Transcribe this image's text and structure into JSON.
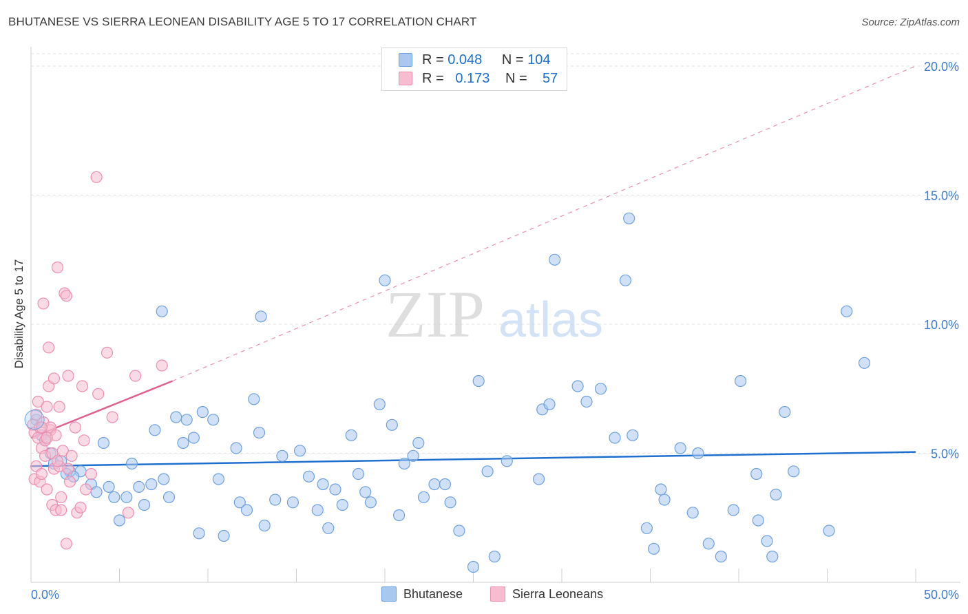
{
  "title": "BHUTANESE VS SIERRA LEONEAN DISABILITY AGE 5 TO 17 CORRELATION CHART",
  "source": "Source: ZipAtlas.com",
  "watermark": {
    "zip": "ZIP",
    "atlas": "atlas"
  },
  "legend": {
    "rows": [
      {
        "r_label": "R =",
        "r_value": "0.048",
        "n_label": "N =",
        "n_value": "104"
      },
      {
        "r_label": "R =",
        "r_value": "0.173",
        "n_label": "N =",
        "n_value": "57"
      }
    ]
  },
  "bottom_legend": [
    "Bhutanese",
    "Sierra Leoneans"
  ],
  "colors": {
    "blue_fill": "#a9c8f0",
    "blue_stroke": "#6ea0dd",
    "blue_line": "#1f6fcf",
    "pink_fill": "#f6bcd0",
    "pink_stroke": "#ec8fb0",
    "pink_line": "#e0608e",
    "axis_text": "#3c7bd0",
    "grid": "#e3e3e3"
  },
  "chart_data": {
    "type": "scatter",
    "title": "BHUTANESE VS SIERRA LEONEAN DISABILITY AGE 5 TO 17 CORRELATION CHART",
    "xlabel": "",
    "ylabel": "Disability Age 5 to 17",
    "xlim": [
      0,
      50
    ],
    "ylim": [
      0,
      20.5
    ],
    "x_tick_labels": [
      "0.0%",
      "50.0%"
    ],
    "y_tick_labels": [
      "5.0%",
      "10.0%",
      "15.0%",
      "20.0%"
    ],
    "y_ticks": [
      5,
      10,
      15,
      20
    ],
    "x_minor_ticks": [
      0,
      5,
      10,
      15,
      20,
      25,
      30,
      35,
      40,
      45,
      50
    ],
    "grid": true,
    "legend_position": "top-center",
    "series": [
      {
        "name": "Bhutanese",
        "R": 0.048,
        "N": 104,
        "trend": {
          "x": [
            0,
            50
          ],
          "y": [
            4.5,
            5.05
          ],
          "style": "solid"
        },
        "points": [
          [
            0.3,
            6.3
          ],
          [
            0.6,
            5.7
          ],
          [
            0.8,
            5.5
          ],
          [
            1.1,
            5.0
          ],
          [
            1.3,
            4.6
          ],
          [
            1.7,
            4.7
          ],
          [
            2.2,
            4.3
          ],
          [
            2.8,
            4.3
          ],
          [
            2.0,
            4.2
          ],
          [
            2.4,
            4.1
          ],
          [
            3.4,
            3.8
          ],
          [
            3.7,
            3.5
          ],
          [
            4.1,
            5.4
          ],
          [
            4.4,
            3.7
          ],
          [
            4.7,
            3.3
          ],
          [
            5.0,
            2.4
          ],
          [
            5.4,
            3.3
          ],
          [
            5.7,
            4.6
          ],
          [
            6.1,
            3.7
          ],
          [
            6.4,
            3.0
          ],
          [
            6.8,
            3.8
          ],
          [
            7.0,
            5.9
          ],
          [
            7.5,
            4.0
          ],
          [
            7.8,
            3.3
          ],
          [
            7.4,
            10.5
          ],
          [
            8.2,
            6.4
          ],
          [
            8.6,
            5.4
          ],
          [
            8.8,
            6.3
          ],
          [
            9.2,
            5.6
          ],
          [
            9.5,
            1.9
          ],
          [
            9.7,
            6.6
          ],
          [
            10.3,
            6.3
          ],
          [
            10.6,
            4.0
          ],
          [
            10.9,
            1.8
          ],
          [
            11.6,
            5.2
          ],
          [
            11.8,
            3.1
          ],
          [
            12.2,
            2.8
          ],
          [
            12.6,
            7.1
          ],
          [
            12.9,
            5.8
          ],
          [
            13.2,
            2.2
          ],
          [
            13.0,
            10.3
          ],
          [
            13.8,
            3.2
          ],
          [
            14.2,
            4.9
          ],
          [
            14.8,
            3.1
          ],
          [
            15.2,
            5.1
          ],
          [
            15.7,
            4.1
          ],
          [
            16.2,
            2.8
          ],
          [
            16.5,
            3.8
          ],
          [
            16.8,
            2.1
          ],
          [
            17.2,
            3.6
          ],
          [
            17.6,
            3.0
          ],
          [
            18.1,
            5.7
          ],
          [
            18.5,
            4.2
          ],
          [
            18.9,
            3.5
          ],
          [
            19.2,
            3.1
          ],
          [
            19.7,
            6.9
          ],
          [
            20.0,
            11.7
          ],
          [
            20.4,
            6.1
          ],
          [
            20.8,
            2.6
          ],
          [
            21.1,
            4.6
          ],
          [
            21.6,
            4.9
          ],
          [
            21.9,
            5.4
          ],
          [
            22.2,
            3.3
          ],
          [
            22.8,
            3.8
          ],
          [
            23.4,
            3.8
          ],
          [
            23.7,
            3.1
          ],
          [
            24.2,
            2.0
          ],
          [
            25.0,
            0.6
          ],
          [
            25.3,
            7.8
          ],
          [
            25.8,
            4.3
          ],
          [
            26.2,
            1.0
          ],
          [
            26.9,
            4.7
          ],
          [
            28.7,
            4.0
          ],
          [
            28.9,
            6.7
          ],
          [
            29.3,
            6.9
          ],
          [
            29.6,
            12.5
          ],
          [
            30.9,
            7.6
          ],
          [
            31.4,
            7.0
          ],
          [
            32.2,
            7.5
          ],
          [
            33.0,
            5.6
          ],
          [
            33.6,
            11.7
          ],
          [
            33.8,
            14.1
          ],
          [
            34.0,
            5.7
          ],
          [
            34.8,
            2.1
          ],
          [
            35.2,
            1.3
          ],
          [
            35.6,
            3.6
          ],
          [
            35.8,
            3.2
          ],
          [
            36.7,
            5.2
          ],
          [
            37.4,
            2.7
          ],
          [
            37.7,
            5.0
          ],
          [
            38.3,
            1.5
          ],
          [
            39.0,
            1.0
          ],
          [
            39.7,
            2.8
          ],
          [
            40.1,
            7.8
          ],
          [
            41.1,
            2.4
          ],
          [
            41.6,
            1.6
          ],
          [
            41.9,
            1.0
          ],
          [
            42.1,
            3.4
          ],
          [
            42.6,
            6.6
          ],
          [
            41.0,
            4.2
          ],
          [
            43.1,
            4.3
          ],
          [
            45.1,
            2.0
          ],
          [
            46.1,
            10.5
          ],
          [
            47.1,
            8.5
          ]
        ]
      },
      {
        "name": "Sierra Leoneans",
        "R": 0.173,
        "N": 57,
        "trend": {
          "x": [
            0,
            8.0
          ],
          "y": [
            5.6,
            7.8
          ],
          "style": "solid",
          "extended_x": [
            8.0,
            50
          ],
          "extended_y": [
            7.8,
            20.0
          ],
          "extended_style": "dashed"
        },
        "points": [
          [
            0.1,
            6.1
          ],
          [
            0.2,
            5.8
          ],
          [
            0.2,
            4.0
          ],
          [
            0.3,
            6.5
          ],
          [
            0.3,
            4.5
          ],
          [
            0.4,
            5.6
          ],
          [
            0.4,
            7.0
          ],
          [
            0.5,
            6.0
          ],
          [
            0.5,
            3.9
          ],
          [
            0.6,
            5.2
          ],
          [
            0.6,
            4.2
          ],
          [
            0.7,
            6.2
          ],
          [
            0.7,
            10.8
          ],
          [
            0.8,
            5.5
          ],
          [
            0.8,
            4.9
          ],
          [
            0.9,
            6.8
          ],
          [
            0.9,
            3.6
          ],
          [
            1.0,
            7.6
          ],
          [
            1.0,
            9.1
          ],
          [
            1.1,
            5.9
          ],
          [
            1.1,
            6.0
          ],
          [
            1.2,
            3.0
          ],
          [
            1.3,
            7.9
          ],
          [
            1.3,
            4.4
          ],
          [
            1.4,
            5.7
          ],
          [
            1.4,
            2.8
          ],
          [
            1.5,
            12.2
          ],
          [
            1.6,
            6.8
          ],
          [
            1.6,
            4.5
          ],
          [
            1.7,
            2.8
          ],
          [
            1.7,
            3.3
          ],
          [
            1.8,
            5.1
          ],
          [
            1.9,
            11.2
          ],
          [
            2.0,
            11.1
          ],
          [
            2.0,
            1.5
          ],
          [
            2.1,
            4.4
          ],
          [
            2.2,
            3.9
          ],
          [
            2.1,
            8.0
          ],
          [
            2.3,
            4.9
          ],
          [
            2.5,
            6.0
          ],
          [
            2.6,
            2.7
          ],
          [
            2.8,
            2.9
          ],
          [
            2.9,
            7.6
          ],
          [
            3.0,
            5.5
          ],
          [
            3.1,
            3.6
          ],
          [
            3.4,
            4.2
          ],
          [
            3.7,
            15.7
          ],
          [
            3.8,
            7.3
          ],
          [
            4.3,
            8.9
          ],
          [
            4.6,
            6.4
          ],
          [
            5.5,
            2.7
          ],
          [
            5.9,
            8.0
          ],
          [
            7.4,
            8.4
          ],
          [
            1.2,
            5.0
          ],
          [
            0.9,
            5.6
          ],
          [
            0.6,
            6.0
          ],
          [
            1.5,
            4.7
          ]
        ]
      }
    ]
  }
}
